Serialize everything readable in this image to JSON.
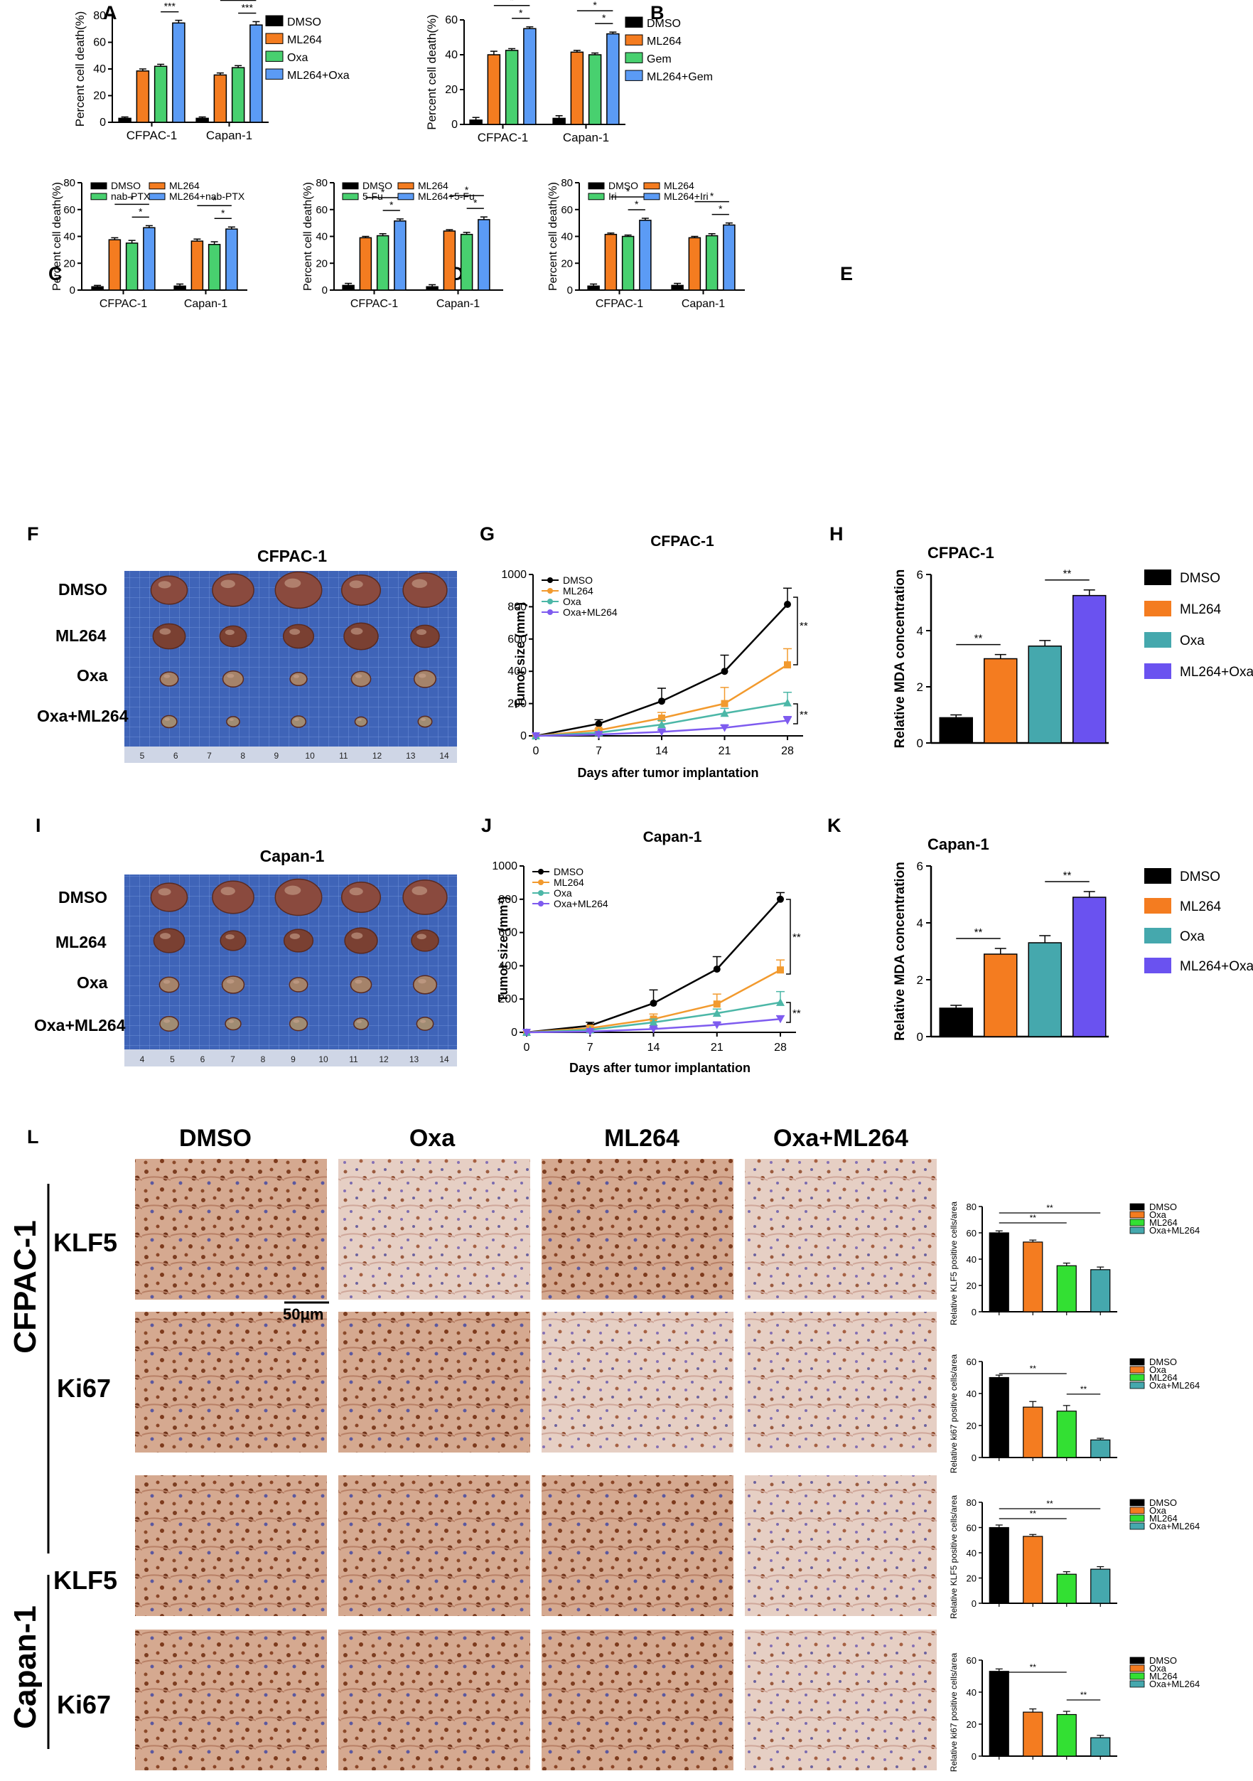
{
  "panel_letters": [
    "A",
    "B",
    "C",
    "D",
    "E",
    "F",
    "G",
    "H",
    "I",
    "J",
    "K",
    "L"
  ],
  "colors": {
    "DMSO": "#000000",
    "ML264": "#f47c20",
    "green": "#48d06f",
    "blue": "#5b9bf5",
    "teal": "#45a8ad",
    "purple": "#6a52f0",
    "ihc_green": "#33e033",
    "line_ml264": "#f29a2e",
    "line_oxa": "#4cb7a7",
    "line_combo": "#7e5bef"
  },
  "photos": {
    "F": {
      "title": "CFPAC-1",
      "rows": [
        "DMSO",
        "ML264",
        "Oxa",
        "Oxa+ML264"
      ],
      "ruler": [
        "5",
        "6",
        "7",
        "8",
        "9",
        "10",
        "11",
        "12",
        "13",
        "14"
      ]
    },
    "I": {
      "title": "Capan-1",
      "rows": [
        "DMSO",
        "ML264",
        "Oxa",
        "Oxa+ML264"
      ],
      "ruler": [
        "4",
        "5",
        "6",
        "7",
        "8",
        "9",
        "10",
        "11",
        "12",
        "13",
        "14"
      ]
    }
  },
  "ihc": {
    "columns": [
      "DMSO",
      "Oxa",
      "ML264",
      "Oxa+ML264"
    ],
    "cell_lines": [
      "CFPAC-1",
      "Capan-1"
    ],
    "markers": [
      "KLF5",
      "Ki67"
    ],
    "scale_bar": "50μm"
  },
  "chart_data": [
    {
      "id": "A",
      "type": "bar",
      "ylabel": "Percent cell death(%)",
      "ylim": [
        0,
        80
      ],
      "yticks": [
        "0",
        "20",
        "40",
        "60",
        "80"
      ],
      "categories": [
        "CFPAC-1",
        "Capan-1"
      ],
      "series": [
        {
          "name": "DMSO",
          "values": [
            3,
            3
          ]
        },
        {
          "name": "ML264",
          "values": [
            38.5,
            35.5
          ]
        },
        {
          "name": "Oxa",
          "values": [
            42,
            41
          ]
        },
        {
          "name": "ML264+Oxa",
          "values": [
            74.5,
            73
          ]
        }
      ],
      "errors": [
        [
          1,
          1
        ],
        [
          1.5,
          1.5
        ],
        [
          1.5,
          1.5
        ],
        [
          2,
          2.5
        ]
      ],
      "annotations": [
        "***",
        "***",
        "***",
        "***"
      ]
    },
    {
      "id": "B",
      "type": "bar",
      "ylabel": "Percent cell death(%)",
      "ylim": [
        0,
        60
      ],
      "yticks": [
        "0",
        "20",
        "40",
        "60"
      ],
      "categories": [
        "CFPAC-1",
        "Capan-1"
      ],
      "series": [
        {
          "name": "DMSO",
          "values": [
            2.5,
            3.5
          ]
        },
        {
          "name": "ML264",
          "values": [
            40,
            41.5
          ]
        },
        {
          "name": "Gem",
          "values": [
            42.5,
            40
          ]
        },
        {
          "name": "ML264+Gem",
          "values": [
            55,
            52
          ]
        }
      ],
      "errors": [
        [
          1.5,
          1.5
        ],
        [
          2,
          1
        ],
        [
          1,
          1
        ],
        [
          1,
          1
        ]
      ],
      "annotations": [
        "*",
        "*",
        "*",
        "*"
      ]
    },
    {
      "id": "C",
      "type": "bar",
      "ylabel": "Percent cell death(%)",
      "ylim": [
        0,
        80
      ],
      "yticks": [
        "0",
        "20",
        "40",
        "60",
        "80"
      ],
      "categories": [
        "CFPAC-1",
        "Capan-1"
      ],
      "series": [
        {
          "name": "DMSO",
          "values": [
            2.5,
            3
          ]
        },
        {
          "name": "ML264",
          "values": [
            37.5,
            36.5
          ]
        },
        {
          "name": "nab-PTX",
          "values": [
            35,
            34
          ]
        },
        {
          "name": "ML264+nab-PTX",
          "values": [
            46.5,
            45.5
          ]
        }
      ],
      "errors": [
        [
          1,
          1.5
        ],
        [
          1.5,
          1.5
        ],
        [
          2,
          2
        ],
        [
          1.5,
          1.5
        ]
      ],
      "annotations": [
        "*",
        "*",
        "*",
        "*"
      ]
    },
    {
      "id": "D",
      "type": "bar",
      "ylabel": "Percent cell death(%)",
      "ylim": [
        0,
        80
      ],
      "yticks": [
        "0",
        "20",
        "40",
        "60",
        "80"
      ],
      "categories": [
        "CFPAC-1",
        "Capan-1"
      ],
      "series": [
        {
          "name": "DMSO",
          "values": [
            3.5,
            2.5
          ]
        },
        {
          "name": "ML264",
          "values": [
            39,
            44
          ]
        },
        {
          "name": "5-Fu",
          "values": [
            40.5,
            41.5
          ]
        },
        {
          "name": "ML264+5-Fu",
          "values": [
            51.5,
            52.5
          ]
        }
      ],
      "errors": [
        [
          1.5,
          1.5
        ],
        [
          1,
          1
        ],
        [
          1.5,
          1.5
        ],
        [
          1.5,
          2
        ]
      ],
      "annotations": [
        "*",
        "*",
        "*",
        "*"
      ]
    },
    {
      "id": "E",
      "type": "bar",
      "ylabel": "Percent cell death(%)",
      "ylim": [
        0,
        80
      ],
      "yticks": [
        "0",
        "20",
        "40",
        "60",
        "80"
      ],
      "categories": [
        "CFPAC-1",
        "Capan-1"
      ],
      "series": [
        {
          "name": "DMSO",
          "values": [
            3,
            3.5
          ]
        },
        {
          "name": "ML264",
          "values": [
            41.5,
            39
          ]
        },
        {
          "name": "Iri",
          "values": [
            40,
            40.5
          ]
        },
        {
          "name": "ML264+Iri",
          "values": [
            52,
            48.5
          ]
        }
      ],
      "errors": [
        [
          1.5,
          1.5
        ],
        [
          1,
          1
        ],
        [
          1,
          1.5
        ],
        [
          1.5,
          1.5
        ]
      ],
      "annotations": [
        "*",
        "*",
        "*",
        "*"
      ]
    },
    {
      "id": "G",
      "type": "line",
      "title": "CFPAC-1",
      "xlabel": "Days after tumor implantation",
      "ylabel": "Tumor size (mm³)",
      "x": [
        0,
        7,
        14,
        21,
        28
      ],
      "ylim": [
        0,
        1000
      ],
      "yticks": [
        "0",
        "200",
        "400",
        "600",
        "800",
        "1000"
      ],
      "series": [
        {
          "name": "DMSO",
          "values": [
            0,
            75,
            215,
            400,
            815
          ]
        },
        {
          "name": "ML264",
          "values": [
            0,
            35,
            110,
            200,
            440
          ]
        },
        {
          "name": "Oxa",
          "values": [
            0,
            20,
            70,
            140,
            205
          ]
        },
        {
          "name": "Oxa+ML264",
          "values": [
            0,
            8,
            25,
            50,
            95
          ]
        }
      ],
      "errors": [
        [
          0,
          25,
          80,
          100,
          100
        ],
        [
          0,
          10,
          35,
          100,
          100
        ],
        [
          0,
          5,
          25,
          30,
          65
        ],
        [
          0,
          3,
          10,
          15,
          25
        ]
      ],
      "annotations": [
        "**",
        "**"
      ]
    },
    {
      "id": "H",
      "type": "bar",
      "title": "CFPAC-1",
      "ylabel": "Relative MDA concentration",
      "ylim": [
        0,
        6
      ],
      "yticks": [
        "0",
        "2",
        "4",
        "6"
      ],
      "categories": [
        "DMSO",
        "ML264",
        "Oxa",
        "ML264+Oxa"
      ],
      "values": [
        0.9,
        3.0,
        3.45,
        5.25
      ],
      "errors": [
        0.1,
        0.15,
        0.2,
        0.2
      ],
      "annotations": [
        "**",
        "**"
      ]
    },
    {
      "id": "J",
      "type": "line",
      "title": "Capan-1",
      "xlabel": "Days after tumor implantation",
      "ylabel": "Tumor size (mm³)",
      "x": [
        0,
        7,
        14,
        21,
        28
      ],
      "ylim": [
        0,
        1000
      ],
      "yticks": [
        "0",
        "200",
        "400",
        "600",
        "800",
        "1000"
      ],
      "series": [
        {
          "name": "DMSO",
          "values": [
            0,
            40,
            175,
            380,
            800
          ]
        },
        {
          "name": "ML264",
          "values": [
            0,
            25,
            80,
            170,
            375
          ]
        },
        {
          "name": "Oxa",
          "values": [
            0,
            15,
            60,
            115,
            180
          ]
        },
        {
          "name": "Oxa+ML264",
          "values": [
            0,
            5,
            20,
            45,
            80
          ]
        }
      ],
      "errors": [
        [
          0,
          20,
          80,
          75,
          40
        ],
        [
          0,
          15,
          30,
          60,
          60
        ],
        [
          0,
          5,
          20,
          25,
          65
        ],
        [
          0,
          3,
          8,
          12,
          20
        ]
      ],
      "annotations": [
        "**",
        "**"
      ]
    },
    {
      "id": "K",
      "type": "bar",
      "title": "Capan-1",
      "ylabel": "Relative MDA concentration",
      "ylim": [
        0,
        6
      ],
      "yticks": [
        "0",
        "2",
        "4",
        "6"
      ],
      "categories": [
        "DMSO",
        "ML264",
        "Oxa",
        "ML264+Oxa"
      ],
      "values": [
        1.0,
        2.9,
        3.3,
        4.9
      ],
      "errors": [
        0.1,
        0.2,
        0.25,
        0.2
      ],
      "annotations": [
        "**",
        "**"
      ]
    },
    {
      "id": "L1",
      "type": "bar",
      "ylabel": "Relative KLF5 positive cells/area",
      "ylim": [
        0,
        80
      ],
      "yticks": [
        "0",
        "20",
        "40",
        "60",
        "80"
      ],
      "categories": [
        "DMSO",
        "Oxa",
        "ML264",
        "Oxa+ML264"
      ],
      "values": [
        60,
        53,
        35,
        32
      ],
      "errors": [
        1.5,
        1.5,
        2,
        2
      ],
      "annotations": [
        "**",
        "**"
      ]
    },
    {
      "id": "L2",
      "type": "bar",
      "ylabel": "Relative ki67 positive cells/area",
      "ylim": [
        0,
        60
      ],
      "yticks": [
        "0",
        "20",
        "40",
        "60"
      ],
      "categories": [
        "DMSO",
        "Oxa",
        "ML264",
        "Oxa+ML264"
      ],
      "values": [
        50,
        31.5,
        29,
        11
      ],
      "errors": [
        1.5,
        3.5,
        3.5,
        1
      ],
      "annotations": [
        "**",
        "**"
      ]
    },
    {
      "id": "L3",
      "type": "bar",
      "ylabel": "Relative KLF5 positive cells/area",
      "ylim": [
        0,
        80
      ],
      "yticks": [
        "0",
        "20",
        "40",
        "60",
        "80"
      ],
      "categories": [
        "DMSO",
        "Oxa",
        "ML264",
        "Oxa+ML264"
      ],
      "values": [
        60,
        53,
        23,
        27
      ],
      "errors": [
        2,
        1.5,
        2,
        2
      ],
      "annotations": [
        "**",
        "**"
      ]
    },
    {
      "id": "L4",
      "type": "bar",
      "ylabel": "Relative ki67 positive cells/area",
      "ylim": [
        0,
        60
      ],
      "yticks": [
        "0",
        "20",
        "40",
        "60"
      ],
      "categories": [
        "DMSO",
        "Oxa",
        "ML264",
        "Oxa+ML264"
      ],
      "values": [
        53,
        27.5,
        26,
        11.5
      ],
      "errors": [
        1.5,
        2,
        2,
        1.5
      ],
      "annotations": [
        "**",
        "**"
      ]
    }
  ]
}
